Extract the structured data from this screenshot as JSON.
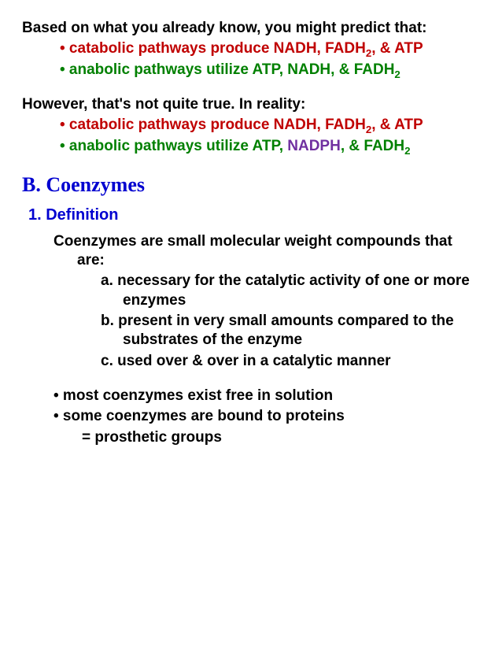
{
  "p1_lead": "Based on what you already know, you might predict that:",
  "p1_b1a": "• catabolic pathways produce NADH, FADH",
  "p1_b1b": ", & ATP",
  "p1_b2a": "• anabolic pathways utilize ATP, NADH, & FADH",
  "p2_lead": "However, that's not quite true.  In reality:",
  "p2_b1a": "• catabolic pathways produce NADH, FADH",
  "p2_b1b": ", & ATP",
  "p2_b2a": "• anabolic pathways utilize ATP",
  "p2_b2b": ", ",
  "p2_b2c": "NADPH",
  "p2_b2d": ", & FADH",
  "heading_b": "B. Coenzymes",
  "heading_1": "1. Definition",
  "def_lead": "Coenzymes are small molecular weight compounds that are:",
  "def_a": "a.   necessary for the catalytic activity of one or more enzymes",
  "def_b": "b.   present in very small amounts compared to the substrates of the enzyme",
  "def_c": "c.   used over & over in a catalytic manner",
  "note1": "• most coenzymes exist free in solution",
  "note2": "• some coenzymes are bound to proteins",
  "note3": "= prosthetic groups",
  "sub2": "2"
}
